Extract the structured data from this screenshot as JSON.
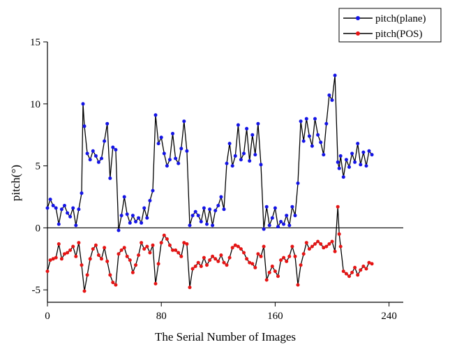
{
  "chart_data": {
    "type": "line",
    "xlabel": "The Serial Number of Images",
    "ylabel": "pitch(°)",
    "xlim": [
      0,
      250
    ],
    "ylim": [
      -6,
      15
    ],
    "x_ticks": [
      0,
      80,
      160,
      240
    ],
    "y_ticks": [
      -5,
      0,
      5,
      10,
      15
    ],
    "zero_line": true,
    "legend_position": "top-right",
    "line_color": "#000000",
    "series": [
      {
        "name": "pitch(plane)",
        "marker_color": "#1414e6",
        "x": [
          0,
          2,
          4,
          6,
          8,
          10,
          12,
          14,
          16,
          18,
          20,
          22,
          24,
          25,
          26,
          28,
          30,
          32,
          34,
          36,
          38,
          40,
          42,
          44,
          46,
          48,
          50,
          52,
          54,
          56,
          58,
          60,
          62,
          64,
          66,
          68,
          70,
          72,
          74,
          76,
          78,
          80,
          82,
          84,
          86,
          88,
          90,
          92,
          94,
          96,
          98,
          100,
          102,
          104,
          106,
          108,
          110,
          112,
          114,
          116,
          118,
          120,
          122,
          124,
          126,
          128,
          130,
          132,
          134,
          136,
          138,
          140,
          142,
          144,
          146,
          148,
          150,
          152,
          154,
          156,
          158,
          160,
          162,
          164,
          166,
          168,
          170,
          172,
          174,
          176,
          178,
          180,
          182,
          184,
          186,
          188,
          190,
          192,
          194,
          196,
          198,
          200,
          202,
          204,
          205,
          206,
          208,
          210,
          212,
          214,
          216,
          218,
          220,
          222,
          224,
          226,
          228
        ],
        "values": [
          1.6,
          2.3,
          1.8,
          1.6,
          0.3,
          1.5,
          1.8,
          1.2,
          0.9,
          1.6,
          0.2,
          1.5,
          2.8,
          10.0,
          8.2,
          6.0,
          5.5,
          6.2,
          5.8,
          5.3,
          5.6,
          7.0,
          8.4,
          4.0,
          6.5,
          6.3,
          -0.2,
          1.0,
          2.5,
          1.1,
          0.4,
          1.0,
          0.5,
          0.8,
          0.4,
          1.6,
          0.8,
          2.2,
          3.0,
          9.1,
          6.8,
          7.3,
          6.0,
          5.0,
          5.5,
          7.6,
          5.6,
          5.2,
          6.4,
          8.6,
          6.2,
          0.2,
          1.0,
          1.3,
          1.0,
          0.5,
          1.6,
          0.3,
          1.5,
          0.2,
          1.4,
          1.8,
          2.5,
          1.5,
          5.2,
          6.8,
          5.0,
          5.8,
          8.3,
          5.5,
          6.0,
          8.0,
          5.4,
          7.5,
          5.9,
          8.4,
          5.1,
          -0.1,
          1.7,
          0.2,
          0.8,
          1.6,
          0.1,
          0.5,
          0.3,
          1.0,
          0.2,
          1.7,
          1.0,
          3.6,
          8.6,
          7.0,
          8.8,
          7.4,
          6.6,
          8.8,
          7.5,
          6.9,
          5.9,
          8.4,
          10.7,
          10.3,
          12.3,
          5.3,
          4.8,
          5.8,
          4.1,
          5.5,
          4.9,
          6.0,
          5.3,
          6.8,
          5.1,
          6.1,
          5.0,
          6.2,
          5.9
        ]
      },
      {
        "name": "pitch(POS)",
        "marker_color": "#e61414",
        "x": [
          0,
          2,
          4,
          6,
          8,
          10,
          12,
          14,
          16,
          18,
          20,
          22,
          24,
          26,
          28,
          30,
          32,
          34,
          36,
          38,
          40,
          42,
          44,
          46,
          48,
          50,
          52,
          54,
          56,
          58,
          60,
          62,
          64,
          66,
          68,
          70,
          72,
          74,
          76,
          78,
          80,
          82,
          84,
          86,
          88,
          90,
          92,
          94,
          96,
          98,
          100,
          102,
          104,
          106,
          108,
          110,
          112,
          114,
          116,
          118,
          120,
          122,
          124,
          126,
          128,
          130,
          132,
          134,
          136,
          138,
          140,
          142,
          144,
          146,
          148,
          150,
          152,
          154,
          156,
          158,
          160,
          162,
          164,
          166,
          168,
          170,
          172,
          174,
          176,
          178,
          180,
          182,
          184,
          186,
          188,
          190,
          192,
          194,
          196,
          198,
          200,
          202,
          204,
          205,
          206,
          208,
          210,
          212,
          214,
          216,
          218,
          220,
          222,
          224,
          226,
          228
        ],
        "values": [
          -3.5,
          -2.6,
          -2.5,
          -2.4,
          -1.3,
          -2.5,
          -2.1,
          -2.0,
          -1.8,
          -1.5,
          -2.3,
          -1.2,
          -3.0,
          -5.1,
          -3.8,
          -2.5,
          -1.7,
          -1.4,
          -2.2,
          -2.5,
          -1.6,
          -2.7,
          -3.8,
          -4.4,
          -4.6,
          -2.1,
          -1.8,
          -1.6,
          -2.3,
          -2.6,
          -3.6,
          -3.0,
          -2.2,
          -1.2,
          -1.7,
          -1.5,
          -2.0,
          -1.4,
          -4.5,
          -2.9,
          -1.2,
          -0.6,
          -0.9,
          -1.4,
          -1.8,
          -1.8,
          -2.0,
          -2.3,
          -1.2,
          -1.3,
          -4.8,
          -3.3,
          -3.1,
          -2.8,
          -3.1,
          -2.4,
          -3.0,
          -2.6,
          -2.3,
          -2.5,
          -2.7,
          -2.2,
          -2.8,
          -3.0,
          -2.4,
          -1.6,
          -1.4,
          -1.5,
          -1.7,
          -2.0,
          -2.5,
          -2.8,
          -2.9,
          -3.2,
          -2.1,
          -2.3,
          -1.5,
          -4.2,
          -3.6,
          -3.1,
          -3.5,
          -3.9,
          -2.6,
          -2.4,
          -2.7,
          -2.3,
          -1.5,
          -2.3,
          -4.6,
          -3.0,
          -2.1,
          -1.2,
          -1.7,
          -1.5,
          -1.3,
          -1.1,
          -1.3,
          -1.6,
          -1.5,
          -1.3,
          -1.1,
          -1.9,
          1.7,
          -0.5,
          -1.5,
          -3.5,
          -3.7,
          -3.9,
          -3.6,
          -3.2,
          -3.8,
          -3.4,
          -3.1,
          -3.3,
          -2.8,
          -2.9
        ]
      }
    ]
  }
}
